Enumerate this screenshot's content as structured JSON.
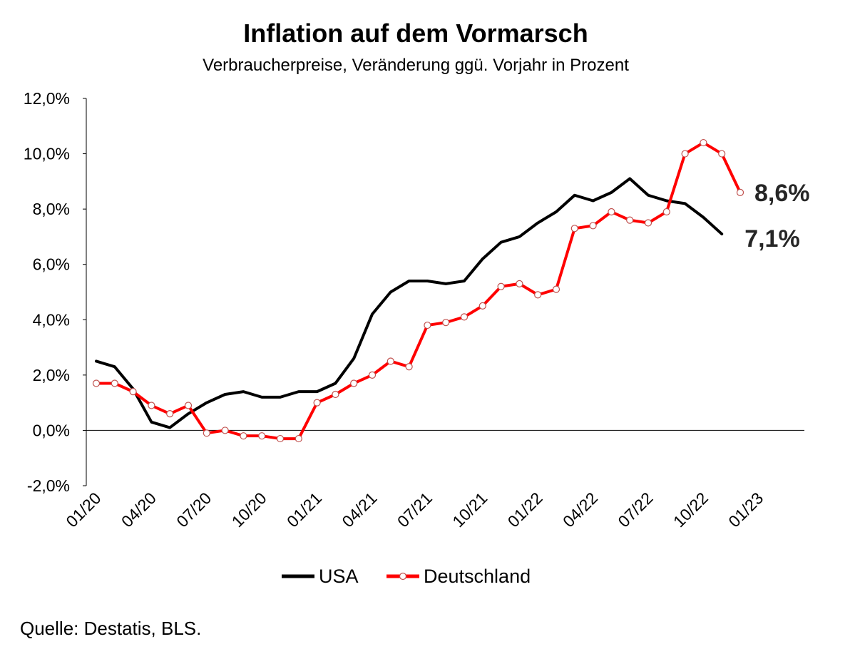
{
  "title": "Inflation auf dem Vormarsch",
  "subtitle": "Verbraucherpreise, Veränderung ggü. Vorjahr in Prozent",
  "source": "Quelle: Destatis, BLS.",
  "chart_data": {
    "type": "line",
    "title": "Inflation auf dem Vormarsch",
    "subtitle": "Verbraucherpreise, Veränderung ggü. Vorjahr in Prozent",
    "xlabel": "",
    "ylabel": "",
    "ylim": [
      -2,
      12
    ],
    "yticks": [
      -2,
      0,
      2,
      4,
      6,
      8,
      10,
      12
    ],
    "ytick_labels": [
      "-2,0%",
      "0,0%",
      "2,0%",
      "4,0%",
      "6,0%",
      "8,0%",
      "10,0%",
      "12,0%"
    ],
    "x": [
      "01/20",
      "02/20",
      "03/20",
      "04/20",
      "05/20",
      "06/20",
      "07/20",
      "08/20",
      "09/20",
      "10/20",
      "11/20",
      "12/20",
      "01/21",
      "02/21",
      "03/21",
      "04/21",
      "05/21",
      "06/21",
      "07/21",
      "08/21",
      "09/21",
      "10/21",
      "11/21",
      "12/21",
      "01/22",
      "02/22",
      "03/22",
      "04/22",
      "05/22",
      "06/22",
      "07/22",
      "08/22",
      "09/22",
      "10/22",
      "11/22",
      "12/22",
      "01/23"
    ],
    "xtick_labels": [
      "01/20",
      "04/20",
      "07/20",
      "10/20",
      "01/21",
      "04/21",
      "07/21",
      "10/21",
      "01/22",
      "04/22",
      "07/22",
      "10/22",
      "01/23"
    ],
    "grid": false,
    "legend": "bottom",
    "series": [
      {
        "name": "USA",
        "color": "#000000",
        "markers": false,
        "values": [
          2.5,
          2.3,
          1.5,
          0.3,
          0.1,
          0.6,
          1.0,
          1.3,
          1.4,
          1.2,
          1.2,
          1.4,
          1.4,
          1.7,
          2.6,
          4.2,
          5.0,
          5.4,
          5.4,
          5.3,
          5.4,
          6.2,
          6.8,
          7.0,
          7.5,
          7.9,
          8.5,
          8.3,
          8.6,
          9.1,
          8.5,
          8.3,
          8.2,
          7.7,
          7.1,
          null,
          null
        ]
      },
      {
        "name": "Deutschland",
        "color": "#ff0000",
        "markers": true,
        "values": [
          1.7,
          1.7,
          1.4,
          0.9,
          0.6,
          0.9,
          -0.1,
          0.0,
          -0.2,
          -0.2,
          -0.3,
          -0.3,
          1.0,
          1.3,
          1.7,
          2.0,
          2.5,
          2.3,
          3.8,
          3.9,
          4.1,
          4.5,
          5.2,
          5.3,
          4.9,
          5.1,
          7.3,
          7.4,
          7.9,
          7.6,
          7.5,
          7.9,
          10.0,
          10.4,
          10.0,
          8.6,
          null
        ]
      }
    ],
    "annotations": [
      {
        "text": "8,6%",
        "series": "Deutschland",
        "x": "12/22",
        "y": 8.6
      },
      {
        "text": "7,1%",
        "series": "USA",
        "x": "11/22",
        "y": 7.1
      }
    ]
  }
}
